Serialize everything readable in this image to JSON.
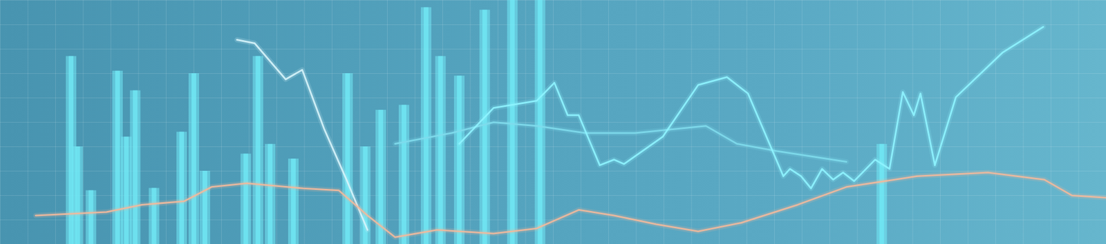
{
  "chart_data": {
    "type": "bar",
    "xlim": [
      0,
      100
    ],
    "ylim": [
      0,
      100
    ],
    "xticks": [
      0,
      2.5,
      5,
      7.5,
      10,
      12.5,
      15,
      17.5,
      20,
      22.5,
      25,
      27.5,
      30,
      32.5,
      35,
      37.5,
      40,
      42.5,
      45,
      47.5,
      50,
      52.5,
      55,
      57.5,
      60,
      62.5,
      65,
      67.5,
      70,
      72.5,
      75,
      77.5,
      80,
      82.5,
      85,
      87.5,
      90,
      92.5,
      95,
      97.5,
      100
    ],
    "yticks": [
      0,
      10,
      20,
      30,
      40,
      50,
      60,
      70,
      80,
      90,
      100
    ],
    "grid": true,
    "tick_labels": false,
    "series": [
      {
        "type": "bar",
        "color": "#72eaf6",
        "x": [
          6.4,
          7.0,
          8.2,
          10.6,
          11.4,
          12.2,
          13.9,
          16.4,
          17.5,
          18.5,
          22.2,
          23.3,
          24.4,
          26.5,
          31.4,
          33.0,
          34.4,
          36.5,
          38.5,
          39.8,
          41.5,
          43.8,
          46.3,
          48.8,
          79.7
        ],
        "values": [
          77,
          40,
          22,
          71,
          44,
          63,
          23,
          46,
          70,
          30,
          37,
          77,
          41,
          35,
          70,
          40,
          55,
          57,
          97,
          77,
          69,
          96,
          100,
          100,
          41
        ]
      },
      {
        "type": "line",
        "color": "#d7f4fb",
        "x": [
          21.4,
          23.0,
          25.8,
          27.3,
          29.3,
          31.3,
          33.2
        ],
        "values": [
          83.8,
          82.4,
          67.6,
          71.5,
          47.1,
          26.5,
          5.9
        ]
      },
      {
        "type": "line",
        "color": "#7fdcec",
        "x": [
          35.7,
          40.8,
          44.6,
          48.5,
          52.9,
          57.4,
          63.8,
          66.6,
          70.2,
          76.5
        ],
        "values": [
          41.2,
          45.6,
          50.0,
          48.5,
          45.6,
          45.6,
          48.5,
          41.2,
          38.2,
          33.8
        ]
      },
      {
        "type": "line",
        "color": "#f2b99c",
        "x": [
          3.2,
          9.6,
          12.8,
          16.6,
          19.1,
          22.3,
          27.4,
          30.6,
          33.2,
          35.7,
          39.5,
          44.6,
          48.5,
          52.3,
          55.5,
          59.3,
          63.1,
          67.0,
          72.1,
          76.5,
          82.9,
          89.3,
          94.4,
          96.9,
          100
        ],
        "values": [
          11.8,
          13.2,
          16.2,
          17.6,
          23.5,
          25.0,
          22.9,
          22.1,
          11.8,
          2.9,
          5.9,
          4.4,
          6.5,
          14.1,
          11.8,
          8.2,
          5.3,
          8.8,
          16.2,
          23.5,
          27.9,
          29.4,
          26.5,
          20.0,
          19.1
        ]
      },
      {
        "type": "line",
        "color": "#8ff4ff",
        "x": [
          41.5,
          44.6,
          48.5,
          50.1,
          51.3,
          52.3,
          54.2,
          55.5,
          56.4,
          59.9,
          63.1,
          65.7,
          67.6,
          70.8,
          71.4,
          72.4,
          73.3,
          74.3,
          75.3,
          76.2,
          77.2,
          79.1,
          80.4,
          81.6,
          82.6,
          83.2,
          84.5,
          86.4,
          90.6,
          94.3
        ],
        "values": [
          41.2,
          55.9,
          58.8,
          66.2,
          52.9,
          52.9,
          32.4,
          34.7,
          32.9,
          44.1,
          65.3,
          68.5,
          61.8,
          27.9,
          30.9,
          27.9,
          22.9,
          30.9,
          26.5,
          29.4,
          25.9,
          34.7,
          30.9,
          62.4,
          52.9,
          61.8,
          32.4,
          60.3,
          78.5,
          89.1
        ]
      }
    ]
  }
}
